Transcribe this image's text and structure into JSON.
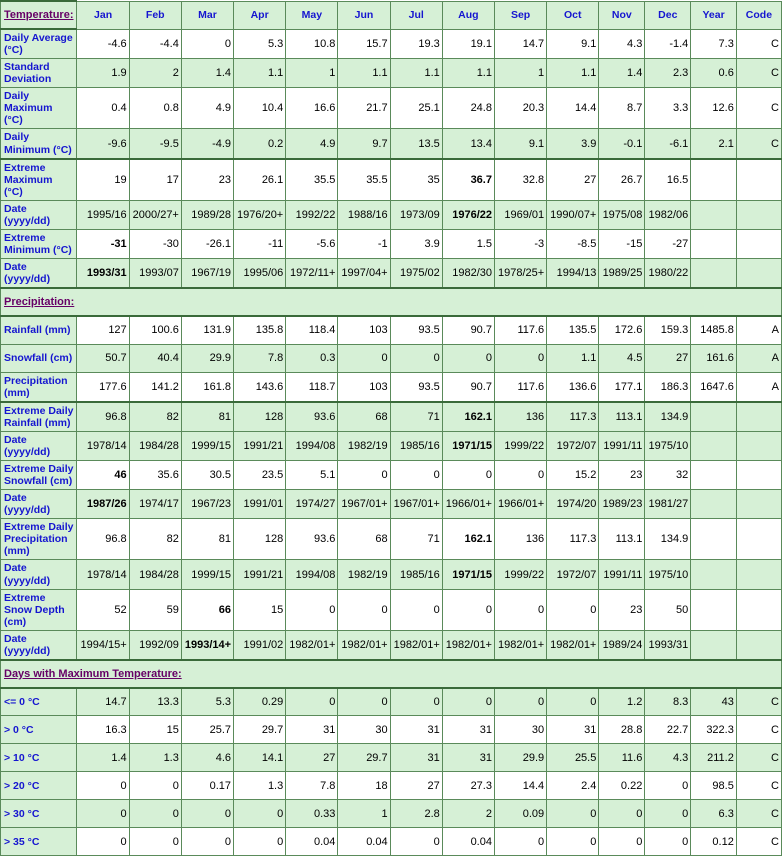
{
  "headers": [
    "Temperature:",
    "Jan",
    "Feb",
    "Mar",
    "Apr",
    "May",
    "Jun",
    "Jul",
    "Aug",
    "Sep",
    "Oct",
    "Nov",
    "Dec",
    "Year",
    "Code"
  ],
  "section_precip": "Precipitation:",
  "section_maxtemp": "Days with Maximum Temperature:",
  "rows": [
    {
      "label": "Daily Average (°C)",
      "bg": "white",
      "cells": [
        "-4.6",
        "-4.4",
        "0",
        "5.3",
        "10.8",
        "15.7",
        "19.3",
        "19.1",
        "14.7",
        "9.1",
        "4.3",
        "-1.4",
        "7.3",
        "C"
      ]
    },
    {
      "label": "Standard Deviation",
      "bg": "green",
      "cells": [
        "1.9",
        "2",
        "1.4",
        "1.1",
        "1",
        "1.1",
        "1.1",
        "1.1",
        "1",
        "1.1",
        "1.4",
        "2.3",
        "0.6",
        "C"
      ]
    },
    {
      "label": "Daily Maximum (°C)",
      "bg": "white",
      "cells": [
        "0.4",
        "0.8",
        "4.9",
        "10.4",
        "16.6",
        "21.7",
        "25.1",
        "24.8",
        "20.3",
        "14.4",
        "8.7",
        "3.3",
        "12.6",
        "C"
      ]
    },
    {
      "label": "Daily Minimum (°C)",
      "bg": "green",
      "thickBottom": true,
      "cells": [
        "-9.6",
        "-9.5",
        "-4.9",
        "0.2",
        "4.9",
        "9.7",
        "13.5",
        "13.4",
        "9.1",
        "3.9",
        "-0.1",
        "-6.1",
        "2.1",
        "C"
      ]
    },
    {
      "label": "Extreme Maximum (°C)",
      "bg": "white",
      "cells": [
        "19",
        "17",
        "23",
        "26.1",
        "35.5",
        "35.5",
        "35",
        "36.7",
        "32.8",
        "27",
        "26.7",
        "16.5",
        "",
        ""
      ],
      "boldIdx": [
        7
      ]
    },
    {
      "label": "Date (yyyy/dd)",
      "bg": "green",
      "cells": [
        "1995/16",
        "2000/27+",
        "1989/28",
        "1976/20+",
        "1992/22",
        "1988/16",
        "1973/09",
        "1976/22",
        "1969/01",
        "1990/07+",
        "1975/08",
        "1982/06",
        "",
        ""
      ],
      "boldIdx": [
        7
      ]
    },
    {
      "label": "Extreme Minimum (°C)",
      "bg": "white",
      "cells": [
        "-31",
        "-30",
        "-26.1",
        "-11",
        "-5.6",
        "-1",
        "3.9",
        "1.5",
        "-3",
        "-8.5",
        "-15",
        "-27",
        "",
        ""
      ],
      "boldIdx": [
        0
      ]
    },
    {
      "label": "Date (yyyy/dd)",
      "bg": "green",
      "thickBottom": true,
      "cells": [
        "1993/31",
        "1993/07",
        "1967/19",
        "1995/06",
        "1972/11+",
        "1997/04+",
        "1975/02",
        "1982/30",
        "1978/25+",
        "1994/13",
        "1989/25",
        "1980/22",
        "",
        ""
      ],
      "boldIdx": [
        0
      ]
    }
  ],
  "precip_rows": [
    {
      "label": "Rainfall (mm)",
      "bg": "white",
      "cells": [
        "127",
        "100.6",
        "131.9",
        "135.8",
        "118.4",
        "103",
        "93.5",
        "90.7",
        "117.6",
        "135.5",
        "172.6",
        "159.3",
        "1485.8",
        "A"
      ]
    },
    {
      "label": "Snowfall (cm)",
      "bg": "green",
      "cells": [
        "50.7",
        "40.4",
        "29.9",
        "7.8",
        "0.3",
        "0",
        "0",
        "0",
        "0",
        "1.1",
        "4.5",
        "27",
        "161.6",
        "A"
      ]
    },
    {
      "label": "Precipitation (mm)",
      "bg": "white",
      "thickBottom": true,
      "cells": [
        "177.6",
        "141.2",
        "161.8",
        "143.6",
        "118.7",
        "103",
        "93.5",
        "90.7",
        "117.6",
        "136.6",
        "177.1",
        "186.3",
        "1647.6",
        "A"
      ]
    },
    {
      "label": "Extreme Daily Rainfall (mm)",
      "bg": "green",
      "cells": [
        "96.8",
        "82",
        "81",
        "128",
        "93.6",
        "68",
        "71",
        "162.1",
        "136",
        "117.3",
        "113.1",
        "134.9",
        "",
        ""
      ],
      "boldIdx": [
        7
      ]
    },
    {
      "label": "Date (yyyy/dd)",
      "bg": "green",
      "cells": [
        "1978/14",
        "1984/28",
        "1999/15",
        "1991/21",
        "1994/08",
        "1982/19",
        "1985/16",
        "1971/15",
        "1999/22",
        "1972/07",
        "1991/11",
        "1975/10",
        "",
        ""
      ],
      "boldIdx": [
        7
      ]
    },
    {
      "label": "Extreme Daily Snowfall (cm)",
      "bg": "white",
      "cells": [
        "46",
        "35.6",
        "30.5",
        "23.5",
        "5.1",
        "0",
        "0",
        "0",
        "0",
        "15.2",
        "23",
        "32",
        "",
        ""
      ],
      "boldIdx": [
        0
      ]
    },
    {
      "label": "Date (yyyy/dd)",
      "bg": "green",
      "cells": [
        "1987/26",
        "1974/17",
        "1967/23",
        "1991/01",
        "1974/27",
        "1967/01+",
        "1967/01+",
        "1966/01+",
        "1966/01+",
        "1974/20",
        "1989/23",
        "1981/27",
        "",
        ""
      ],
      "boldIdx": [
        0
      ]
    },
    {
      "label": "Extreme Daily Precipitation (mm)",
      "bg": "white",
      "cells": [
        "96.8",
        "82",
        "81",
        "128",
        "93.6",
        "68",
        "71",
        "162.1",
        "136",
        "117.3",
        "113.1",
        "134.9",
        "",
        ""
      ],
      "boldIdx": [
        7
      ]
    },
    {
      "label": "Date (yyyy/dd)",
      "bg": "green",
      "cells": [
        "1978/14",
        "1984/28",
        "1999/15",
        "1991/21",
        "1994/08",
        "1982/19",
        "1985/16",
        "1971/15",
        "1999/22",
        "1972/07",
        "1991/11",
        "1975/10",
        "",
        ""
      ],
      "boldIdx": [
        7
      ]
    },
    {
      "label": "Extreme Snow Depth (cm)",
      "bg": "white",
      "cells": [
        "52",
        "59",
        "66",
        "15",
        "0",
        "0",
        "0",
        "0",
        "0",
        "0",
        "23",
        "50",
        "",
        ""
      ],
      "boldIdx": [
        2
      ]
    },
    {
      "label": "Date (yyyy/dd)",
      "bg": "green",
      "thickBottom": true,
      "cells": [
        "1994/15+",
        "1992/09",
        "1993/14+",
        "1991/02",
        "1982/01+",
        "1982/01+",
        "1982/01+",
        "1982/01+",
        "1982/01+",
        "1982/01+",
        "1989/24",
        "1993/31",
        "",
        ""
      ],
      "boldIdx": [
        2
      ]
    }
  ],
  "maxtemp_rows": [
    {
      "label": "<= 0 °C",
      "bg": "green",
      "cells": [
        "14.7",
        "13.3",
        "5.3",
        "0.29",
        "0",
        "0",
        "0",
        "0",
        "0",
        "0",
        "1.2",
        "8.3",
        "43",
        "C"
      ]
    },
    {
      "label": "> 0 °C",
      "bg": "white",
      "cells": [
        "16.3",
        "15",
        "25.7",
        "29.7",
        "31",
        "30",
        "31",
        "31",
        "30",
        "31",
        "28.8",
        "22.7",
        "322.3",
        "C"
      ]
    },
    {
      "label": "> 10 °C",
      "bg": "green",
      "cells": [
        "1.4",
        "1.3",
        "4.6",
        "14.1",
        "27",
        "29.7",
        "31",
        "31",
        "29.9",
        "25.5",
        "11.6",
        "4.3",
        "211.2",
        "C"
      ]
    },
    {
      "label": "> 20 °C",
      "bg": "white",
      "cells": [
        "0",
        "0",
        "0.17",
        "1.3",
        "7.8",
        "18",
        "27",
        "27.3",
        "14.4",
        "2.4",
        "0.22",
        "0",
        "98.5",
        "C"
      ]
    },
    {
      "label": "> 30 °C",
      "bg": "green",
      "cells": [
        "0",
        "0",
        "0",
        "0",
        "0.33",
        "1",
        "2.8",
        "2",
        "0.09",
        "0",
        "0",
        "0",
        "6.3",
        "C"
      ]
    },
    {
      "label": "> 35 °C",
      "bg": "white",
      "cells": [
        "0",
        "0",
        "0",
        "0",
        "0.04",
        "0.04",
        "0",
        "0.04",
        "0",
        "0",
        "0",
        "0",
        "0.12",
        "C"
      ]
    }
  ]
}
